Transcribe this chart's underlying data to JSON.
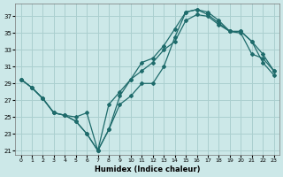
{
  "xlabel": "Humidex (Indice chaleur)",
  "bg_color": "#cce8e8",
  "grid_color": "#aacfcf",
  "line_color": "#1e6b6b",
  "ylim": [
    20.5,
    38.5
  ],
  "xlim": [
    -0.5,
    23.5
  ],
  "yticks": [
    21,
    23,
    25,
    27,
    29,
    31,
    33,
    35,
    37
  ],
  "xticks": [
    0,
    1,
    2,
    3,
    4,
    5,
    6,
    7,
    8,
    9,
    10,
    11,
    12,
    13,
    14,
    15,
    16,
    17,
    18,
    19,
    20,
    21,
    22,
    23
  ],
  "line1_x": [
    0,
    1,
    2,
    3,
    4,
    5,
    6,
    7,
    8,
    9,
    10,
    11,
    12,
    13,
    14,
    15,
    16,
    17,
    18,
    19,
    20,
    21,
    22,
    23
  ],
  "line1_y": [
    29.5,
    28.5,
    27.2,
    25.5,
    25.2,
    24.5,
    23.0,
    21.0,
    23.5,
    26.5,
    27.5,
    29.0,
    29.0,
    31.0,
    34.5,
    37.5,
    37.8,
    37.2,
    36.2,
    35.2,
    35.2,
    34.0,
    31.5,
    30.0
  ],
  "line2_x": [
    0,
    1,
    2,
    3,
    4,
    5,
    6,
    7,
    8,
    9,
    10,
    11,
    12,
    13,
    14,
    15,
    16,
    17,
    18,
    19,
    20,
    21,
    22,
    23
  ],
  "line2_y": [
    29.5,
    28.5,
    27.2,
    25.5,
    25.2,
    24.5,
    23.0,
    21.0,
    23.5,
    27.5,
    29.5,
    31.5,
    32.0,
    33.5,
    35.5,
    37.5,
    37.8,
    37.5,
    36.5,
    35.2,
    35.0,
    32.5,
    32.0,
    30.5
  ],
  "line3_x": [
    0,
    1,
    2,
    3,
    4,
    5,
    6,
    7,
    8,
    9,
    10,
    11,
    12,
    13,
    14,
    15,
    16,
    17,
    18,
    19,
    20,
    21,
    22,
    23
  ],
  "line3_y": [
    29.5,
    28.5,
    27.2,
    25.5,
    25.2,
    25.0,
    25.5,
    21.0,
    26.5,
    28.0,
    29.5,
    30.5,
    31.5,
    33.0,
    34.0,
    36.5,
    37.2,
    37.0,
    36.0,
    35.2,
    35.2,
    34.0,
    32.5,
    30.5
  ]
}
